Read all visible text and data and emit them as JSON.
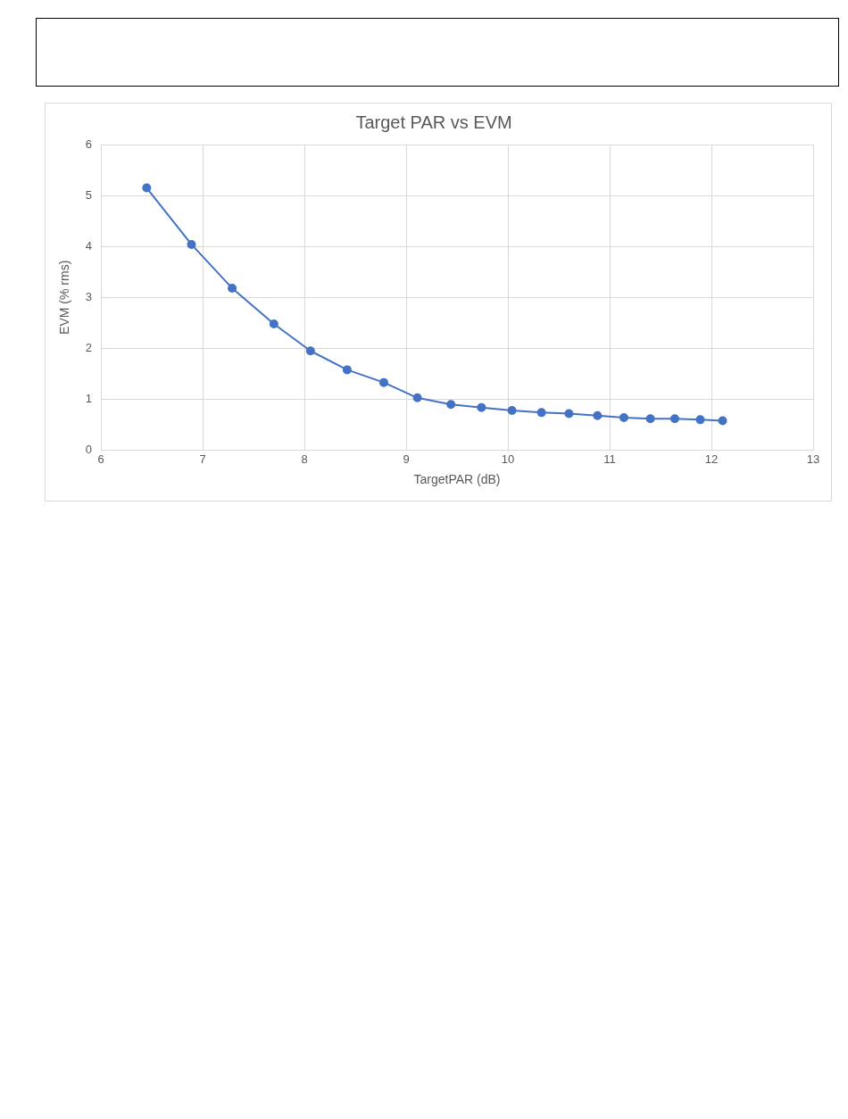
{
  "chart_data": {
    "type": "line",
    "title": "Target PAR vs EVM",
    "xlabel": "TargetPAR (dB)",
    "ylabel": "EVM (% rms)",
    "x": [
      6.45,
      6.89,
      7.29,
      7.7,
      8.06,
      8.42,
      8.78,
      9.11,
      9.44,
      9.74,
      10.04,
      10.33,
      10.6,
      10.88,
      11.14,
      11.4,
      11.64,
      11.89,
      12.11
    ],
    "series": [
      {
        "color": "#4472c4",
        "values": [
          5.15,
          4.04,
          3.18,
          2.48,
          1.95,
          1.58,
          1.33,
          1.03,
          0.9,
          0.84,
          0.78,
          0.74,
          0.72,
          0.68,
          0.64,
          0.62,
          0.62,
          0.6,
          0.58
        ]
      }
    ],
    "xlim": [
      6,
      13
    ],
    "xticks": [
      6,
      7,
      8,
      9,
      10,
      11,
      12,
      13
    ],
    "ylim": [
      0,
      6
    ],
    "yticks": [
      0,
      1,
      2,
      3,
      4,
      5,
      6
    ],
    "grid": true,
    "legend": false,
    "marker": "circle",
    "line_style": "solid"
  }
}
